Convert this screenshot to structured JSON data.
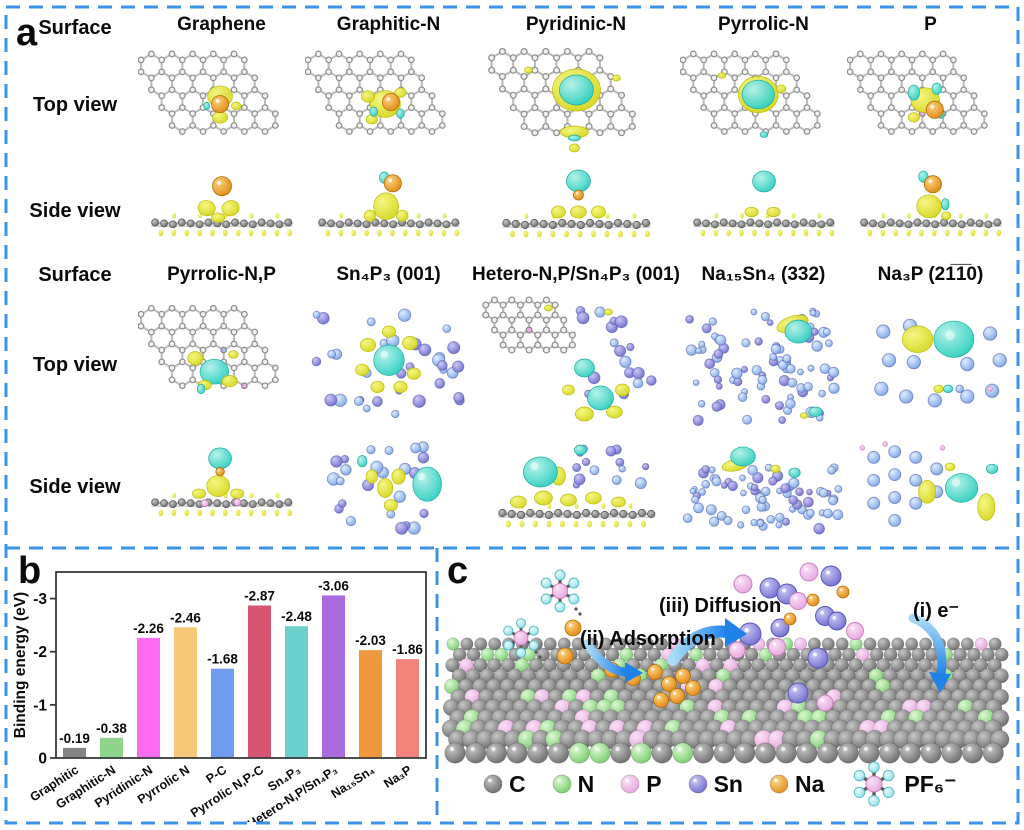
{
  "figure": {
    "border_color": "#3B93E8",
    "background": "#FFFFFF",
    "isosurface_colors": {
      "charge_accumulation_yellow": "#E0DF2E",
      "charge_depletion_cyan": "#3BD9CB"
    }
  },
  "panel_a": {
    "label": "a",
    "row_labels": {
      "surface": "Surface",
      "top_view": "Top view",
      "side_view": "Side view"
    },
    "groups": [
      {
        "surface_label": "Surface",
        "columns": [
          "Graphene",
          "Graphitic-N",
          "Pyridinic-N",
          "Pyrrolic-N",
          "P"
        ]
      },
      {
        "surface_label": "Surface",
        "columns": [
          "Pyrrolic-N,P",
          "Sn₄P₃ (001)",
          "Hetero-N,P/Sn₄P₃ (001)",
          "Na₁₅Sn₄ (332)",
          "Na₃P (21̅1̅0)"
        ]
      }
    ]
  },
  "panel_b": {
    "label": "b"
  },
  "chart_data": {
    "type": "bar",
    "title": "",
    "xlabel": "",
    "ylabel": "Binding energy (eV)",
    "ylim": [
      0,
      -3.5
    ],
    "yticks": [
      0,
      -1,
      -2,
      -3
    ],
    "grid": false,
    "legend_position": "none",
    "categories": [
      "Graphitic",
      "Graphitic-N",
      "Pyridinic-N",
      "Pyrrolic N",
      "P-C",
      "Pyrrolic N,P-C",
      "Sn₄P₃",
      "Hetero-N,P/Sn₄P₃",
      "Na₁₅Sn₄",
      "Na₃P"
    ],
    "values": [
      -0.19,
      -0.38,
      -2.26,
      -2.46,
      -1.68,
      -2.87,
      -2.48,
      -3.06,
      -2.03,
      -1.86
    ],
    "value_labels": [
      "-0.19",
      "-0.38",
      "-2.26",
      "-2.46",
      "-1.68",
      "-2.87",
      "-2.48",
      "-3.06",
      "-2.03",
      "-1.86"
    ],
    "bar_colors": [
      "#858585",
      "#90D48B",
      "#FB6BF2",
      "#F4C877",
      "#6F9CEE",
      "#D65572",
      "#6BCFCC",
      "#AA6BE0",
      "#F0983E",
      "#F0837A"
    ]
  },
  "panel_c": {
    "label": "c",
    "annotations": {
      "step1_electron": "(i) e⁻",
      "step2_adsorption": "(ii) Adsorption",
      "step3_diffusion": "(iii) Diffusion"
    },
    "legend": [
      {
        "label": "C",
        "color": "#7B7B7B",
        "icon": "carbon-atom-icon"
      },
      {
        "label": "N",
        "color": "#8FD98A",
        "icon": "nitrogen-atom-icon"
      },
      {
        "label": "P",
        "color": "#EFB6E9",
        "icon": "phosphorus-atom-icon"
      },
      {
        "label": "Sn",
        "color": "#8585DC",
        "icon": "tin-atom-icon"
      },
      {
        "label": "Na",
        "color": "#E5A334",
        "icon": "sodium-atom-icon"
      },
      {
        "label": "PF₆⁻",
        "color": "#EFA8E6",
        "icon": "pf6-molecule-icon"
      }
    ]
  }
}
